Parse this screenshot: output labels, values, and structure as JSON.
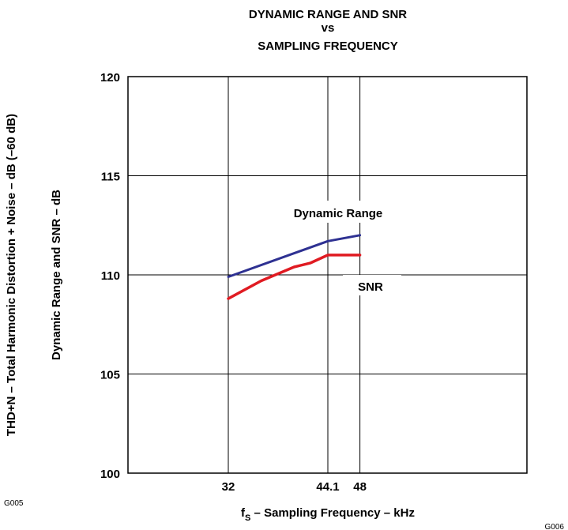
{
  "chart_data": {
    "type": "line",
    "title_lines": [
      "DYNAMIC RANGE AND SNR",
      "vs",
      "SAMPLING FREQUENCY"
    ],
    "xlabel_main": "f",
    "xlabel_sub": "S",
    "xlabel_rest": " – Sampling Frequency – kHz",
    "ylabel": "Dynamic Range and SNR – dB",
    "ylabel_secondary": "THD+N – Total Harmonic Distortion + Noise – dB (–60 dB)",
    "x_ticks": [
      {
        "value": 32,
        "label": "32"
      },
      {
        "value": 44.1,
        "label": "44.1"
      },
      {
        "value": 48,
        "label": "48"
      }
    ],
    "y_ticks": [
      {
        "value": 100,
        "label": "100"
      },
      {
        "value": 105,
        "label": "105"
      },
      {
        "value": 110,
        "label": "110"
      },
      {
        "value": 115,
        "label": "115"
      },
      {
        "value": 120,
        "label": "120"
      }
    ],
    "ylim": [
      100,
      120
    ],
    "grid": true,
    "series": [
      {
        "name": "Dynamic Range",
        "color": "#2e3192",
        "x": [
          32,
          44.1,
          48
        ],
        "y": [
          109.9,
          111.7,
          112.0
        ]
      },
      {
        "name": "SNR",
        "color": "#e01b22",
        "x": [
          32,
          36,
          40,
          42,
          44.1,
          46,
          48
        ],
        "y": [
          108.8,
          109.7,
          110.4,
          110.6,
          111.0,
          111.0,
          111.0
        ]
      }
    ],
    "left_code": "G005",
    "right_code": "G006"
  }
}
